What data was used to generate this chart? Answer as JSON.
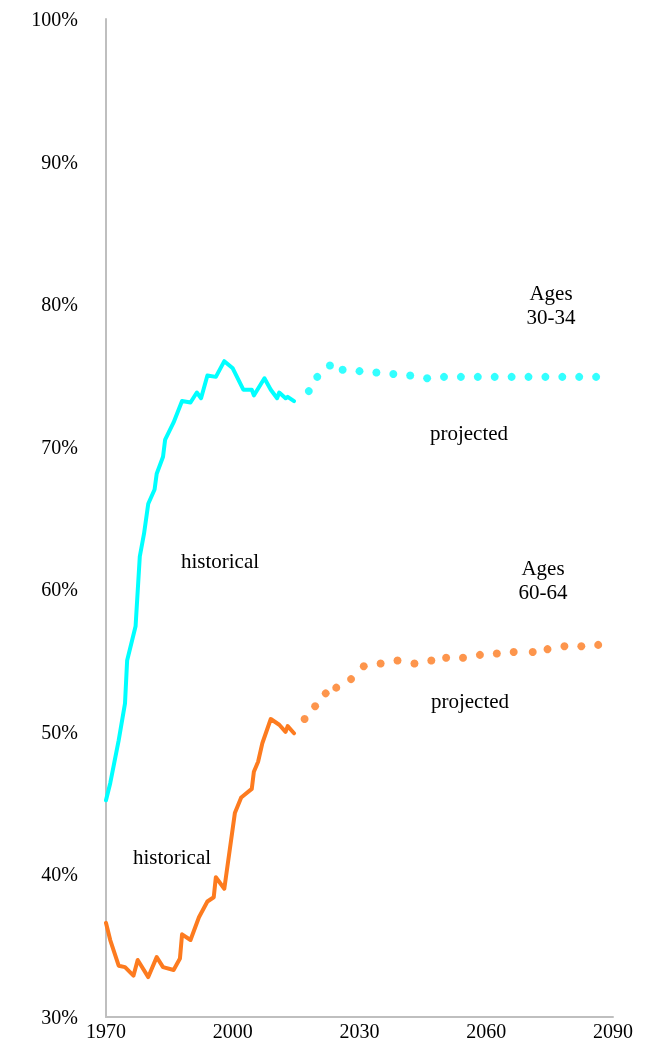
{
  "chart_data": {
    "type": "line",
    "xlim": [
      1970,
      2090
    ],
    "xticks": [
      1970,
      2000,
      2030,
      2060,
      2090
    ],
    "ylim": [
      30,
      100
    ],
    "yticks": [
      {
        "value": 30,
        "label": "30%"
      },
      {
        "value": 40,
        "label": "40%"
      },
      {
        "value": 50,
        "label": "50%"
      },
      {
        "value": 60,
        "label": "60%"
      },
      {
        "value": 70,
        "label": "70%"
      },
      {
        "value": 80,
        "label": "80%"
      },
      {
        "value": 90,
        "label": "90%"
      },
      {
        "value": 100,
        "label": "100%"
      }
    ],
    "grid": false,
    "series": [
      {
        "color": "#00ffff",
        "line_style": "solid",
        "marker": "none",
        "x": [
          1970,
          1971,
          1973,
          1974.5,
          1975,
          1977,
          1978,
          1979,
          1980,
          1981.5,
          1982,
          1983.5,
          1984,
          1986,
          1988,
          1990,
          1991.5,
          1992.5,
          1994,
          1996,
          1998,
          2000,
          2002.5,
          2004.5,
          2005,
          2007.5,
          2009,
          2010.5,
          2011,
          2012.5,
          2013,
          2014.5
        ],
        "values": [
          45.2,
          46.4,
          49.4,
          52.0,
          55.0,
          57.4,
          62.3,
          63.9,
          66.0,
          67.0,
          68.1,
          69.3,
          70.5,
          71.7,
          73.2,
          73.1,
          73.8,
          73.4,
          75.0,
          74.9,
          76.0,
          75.5,
          74.0,
          74.0,
          73.6,
          74.8,
          74.0,
          73.4,
          73.8,
          73.4,
          73.5,
          73.2
        ]
      },
      {
        "type": "scatter",
        "color": "#00ffff",
        "marker": "circle",
        "x": [
          2018,
          2020,
          2023,
          2026,
          2030,
          2034,
          2038,
          2042,
          2046,
          2050,
          2054,
          2058,
          2062,
          2066,
          2070,
          2074,
          2078,
          2082,
          2086
        ],
        "values": [
          73.9,
          74.9,
          75.7,
          75.4,
          75.3,
          75.2,
          75.1,
          75.0,
          74.8,
          74.9,
          74.9,
          74.9,
          74.9,
          74.9,
          74.9,
          74.9,
          74.9,
          74.9,
          74.9
        ]
      },
      {
        "color": "#fd7b1f",
        "line_style": "solid",
        "marker": "none",
        "x": [
          1970,
          1971,
          1973,
          1974.5,
          1976.5,
          1977.5,
          1980,
          1982,
          1983.5,
          1986,
          1987.5,
          1988,
          1990,
          1992,
          1994,
          1995.5,
          1996,
          1998,
          2000.5,
          2002,
          2004.5,
          2005,
          2006,
          2007,
          2009,
          2011,
          2012.5,
          2013,
          2014.5
        ],
        "values": [
          36.6,
          35.4,
          33.6,
          33.5,
          32.9,
          34.0,
          32.8,
          34.2,
          33.5,
          33.3,
          34.1,
          35.8,
          35.4,
          37.0,
          38.1,
          38.4,
          39.8,
          39.0,
          44.3,
          45.4,
          46.0,
          47.2,
          47.9,
          49.2,
          50.9,
          50.5,
          50.0,
          50.4,
          49.9
        ]
      },
      {
        "type": "scatter",
        "color": "#fd7b1f",
        "marker": "circle",
        "x": [
          2017,
          2019.5,
          2022,
          2024.5,
          2028,
          2031,
          2035,
          2039,
          2043,
          2047,
          2050.5,
          2054.5,
          2058.5,
          2062.5,
          2066.5,
          2071,
          2074.5,
          2078.5,
          2082.5,
          2086.5
        ],
        "values": [
          50.9,
          51.8,
          52.7,
          53.1,
          53.7,
          54.6,
          54.8,
          55.0,
          54.8,
          55.0,
          55.2,
          55.2,
          55.4,
          55.5,
          55.6,
          55.6,
          55.8,
          56.0,
          56.0,
          56.1
        ]
      }
    ],
    "annotations": [
      "historical",
      "historical",
      "projected",
      "projected",
      "Ages\n30-34",
      "Ages\n60-64"
    ]
  }
}
